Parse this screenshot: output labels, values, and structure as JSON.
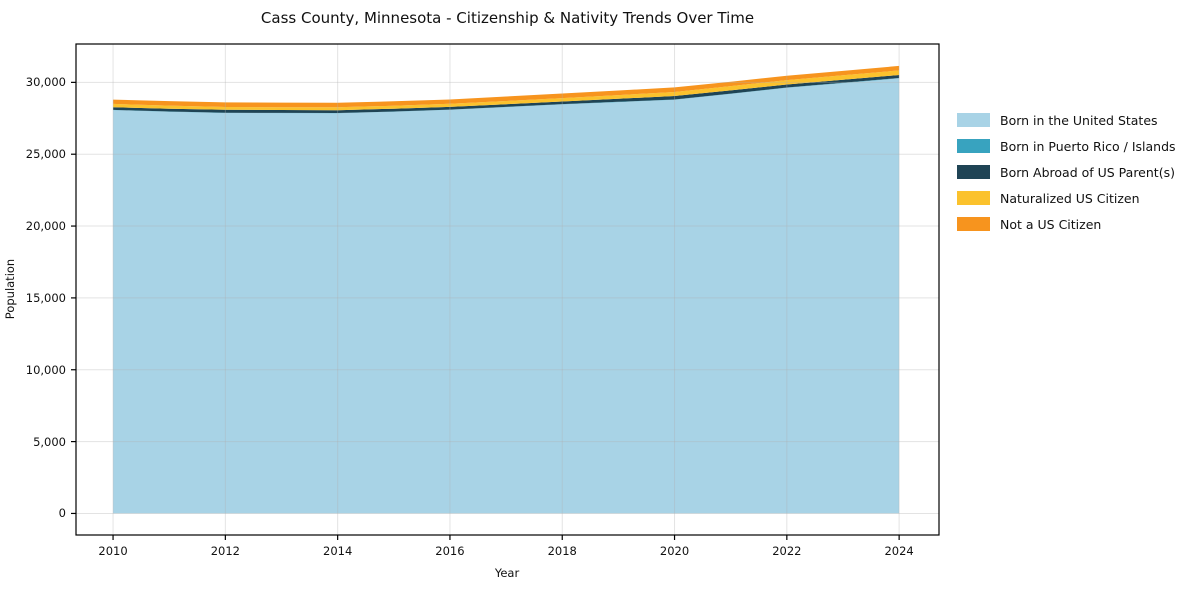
{
  "title": "Cass County, Minnesota - Citizenship & Nativity Trends Over Time",
  "chart_data": {
    "type": "area",
    "stacked": true,
    "title": "Cass County, Minnesota - Citizenship & Nativity Trends Over Time",
    "xlabel": "Year",
    "ylabel": "Population",
    "x": [
      2010,
      2011,
      2012,
      2013,
      2014,
      2015,
      2016,
      2017,
      2018,
      2019,
      2020,
      2021,
      2022,
      2023,
      2024
    ],
    "series": [
      {
        "name": "Born in the United States",
        "color": "#a8d3e6",
        "values": [
          28070,
          27960,
          27870,
          27860,
          27850,
          27960,
          28090,
          28280,
          28470,
          28630,
          28790,
          29200,
          29625,
          29950,
          30280
        ]
      },
      {
        "name": "Born in Puerto Rico / Islands",
        "color": "#38a3bf",
        "values": [
          15,
          15,
          15,
          15,
          15,
          15,
          15,
          15,
          15,
          15,
          20,
          20,
          20,
          25,
          25
        ]
      },
      {
        "name": "Born Abroad of US Parent(s)",
        "color": "#1f4455",
        "values": [
          180,
          195,
          210,
          205,
          200,
          195,
          190,
          188,
          185,
          212,
          240,
          222,
          205,
          207,
          210
        ]
      },
      {
        "name": "Naturalized US Citizen",
        "color": "#fbc22d",
        "values": [
          235,
          215,
          190,
          195,
          200,
          205,
          210,
          222,
          235,
          257,
          280,
          295,
          310,
          312,
          315
        ]
      },
      {
        "name": "Not a US Citizen",
        "color": "#f7941e",
        "values": [
          300,
          310,
          320,
          318,
          315,
          310,
          300,
          310,
          320,
          320,
          320,
          310,
          300,
          307,
          315
        ]
      }
    ],
    "xticks": [
      2010,
      2012,
      2014,
      2016,
      2018,
      2020,
      2022,
      2024
    ],
    "xtick_labels": [
      "2010",
      "2012",
      "2014",
      "2016",
      "2018",
      "2020",
      "2022",
      "2024"
    ],
    "yticks": [
      0,
      5000,
      10000,
      15000,
      20000,
      25000,
      30000
    ],
    "ytick_labels": [
      "0",
      "5,000",
      "10,000",
      "15,000",
      "20,000",
      "25,000",
      "30,000"
    ],
    "xlim": [
      2009.34,
      2024.71
    ],
    "ylim": [
      -1500,
      32670
    ],
    "grid": true,
    "legend_position": "right"
  },
  "colors": {
    "background": "#ffffff",
    "spine": "#000000",
    "grid": "rgba(176,176,176,0.35)",
    "text": "#111111"
  }
}
